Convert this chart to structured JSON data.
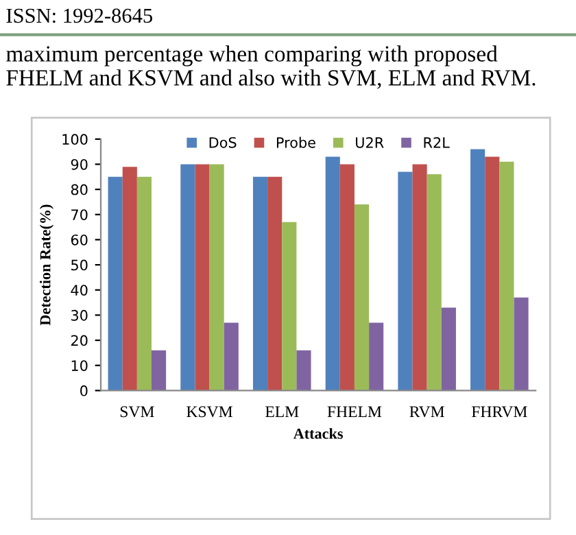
{
  "chart_data": {
    "type": "bar",
    "annotations": [
      "ISSN: 1992-8645",
      "maximum percentage when comparing with proposed FHELM and KSVM and also with SVM, ELM and RVM."
    ],
    "xlabel": "Attacks",
    "ylabel": "Detection Rate(%)",
    "categories": [
      "SVM",
      "KSVM",
      "ELM",
      "FHELM",
      "RVM",
      "FHRVM"
    ],
    "series": [
      {
        "name": "DoS",
        "color": "#4f81bd",
        "values": [
          85,
          90,
          85,
          93,
          87,
          96
        ]
      },
      {
        "name": "Probe",
        "color": "#c0504d",
        "values": [
          89,
          90,
          85,
          90,
          90,
          93
        ]
      },
      {
        "name": "U2R",
        "color": "#9bbb59",
        "values": [
          85,
          90,
          67,
          74,
          86,
          91
        ]
      },
      {
        "name": "R2L",
        "color": "#8064a2",
        "values": [
          16,
          27,
          16,
          27,
          33,
          37
        ]
      }
    ],
    "ylim": [
      0,
      100
    ],
    "yticks": [
      0,
      10,
      20,
      30,
      40,
      50,
      60,
      70,
      80,
      90,
      100
    ],
    "grid": false,
    "legend": "top"
  }
}
